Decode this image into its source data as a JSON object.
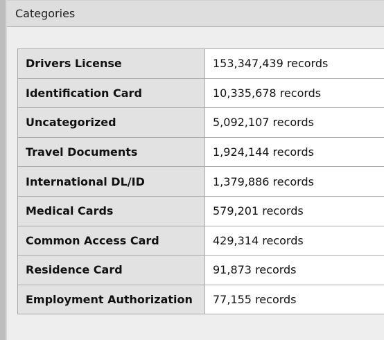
{
  "header": {
    "title": "Categories"
  },
  "table": {
    "rows": [
      [
        "Drivers License",
        "153,347,439 records"
      ],
      [
        "Identification Card",
        "10,335,678 records"
      ],
      [
        "Uncategorized",
        "5,092,107 records"
      ],
      [
        "Travel Documents",
        "1,924,144 records"
      ],
      [
        "International DL/ID",
        "1,379,886 records"
      ],
      [
        "Medical Cards",
        "579,201 records"
      ],
      [
        "Common Access Card",
        "429,314 records"
      ],
      [
        "Residence Card",
        "91,873 records"
      ],
      [
        "Employment Authorization",
        "77,155 records"
      ]
    ]
  }
}
